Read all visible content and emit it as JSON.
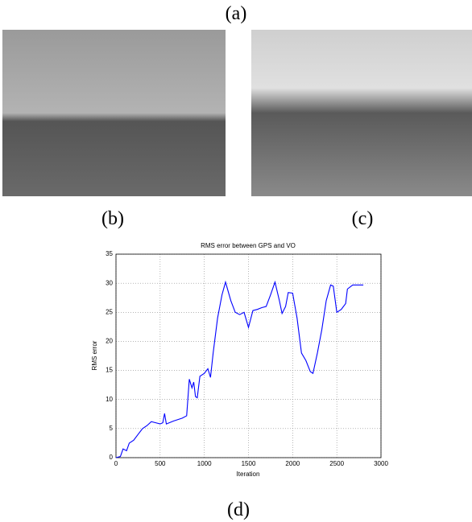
{
  "labels": {
    "a": "(a)",
    "b": "(b)",
    "c": "(c)",
    "d": "(d)"
  },
  "chart_data": {
    "type": "line",
    "title": "RMS error between GPS and VO",
    "xlabel": "Iteration",
    "ylabel": "RMS error",
    "x": [
      0,
      50,
      80,
      120,
      150,
      200,
      250,
      300,
      350,
      400,
      450,
      500,
      530,
      550,
      570,
      650,
      750,
      800,
      830,
      860,
      880,
      900,
      920,
      950,
      1000,
      1040,
      1070,
      1100,
      1150,
      1200,
      1240,
      1300,
      1350,
      1400,
      1450,
      1500,
      1550,
      1600,
      1650,
      1700,
      1750,
      1800,
      1850,
      1880,
      1920,
      1950,
      2000,
      2050,
      2100,
      2150,
      2200,
      2230,
      2280,
      2330,
      2380,
      2430,
      2460,
      2500,
      2550,
      2600,
      2620,
      2680,
      2750,
      2800
    ],
    "series": [
      {
        "name": "RMS error",
        "color": "#0000ff",
        "values": [
          0,
          0.2,
          1.5,
          1.2,
          2.5,
          3,
          4,
          5,
          5.5,
          6.2,
          6,
          5.8,
          6,
          7.6,
          5.8,
          6.3,
          6.8,
          7.2,
          13.5,
          12,
          13,
          10.5,
          10.3,
          14,
          14.5,
          15.3,
          13.8,
          18,
          24,
          28,
          30.2,
          27,
          25,
          24.6,
          25,
          22.4,
          25.3,
          25.5,
          25.8,
          26,
          28,
          30.2,
          27,
          24.8,
          26,
          28.4,
          28.3,
          24,
          18,
          16.7,
          14.8,
          14.5,
          18,
          22,
          27,
          29.7,
          29.5,
          25,
          25.5,
          26.5,
          29,
          29.7,
          29.7,
          29.7
        ]
      }
    ],
    "xlim": [
      0,
      3000
    ],
    "xticks": [
      0,
      500,
      1000,
      1500,
      2000,
      2500,
      3000
    ],
    "ylim": [
      0,
      35
    ],
    "yticks": [
      0,
      5,
      10,
      15,
      20,
      25,
      30,
      35
    ],
    "grid": true
  }
}
